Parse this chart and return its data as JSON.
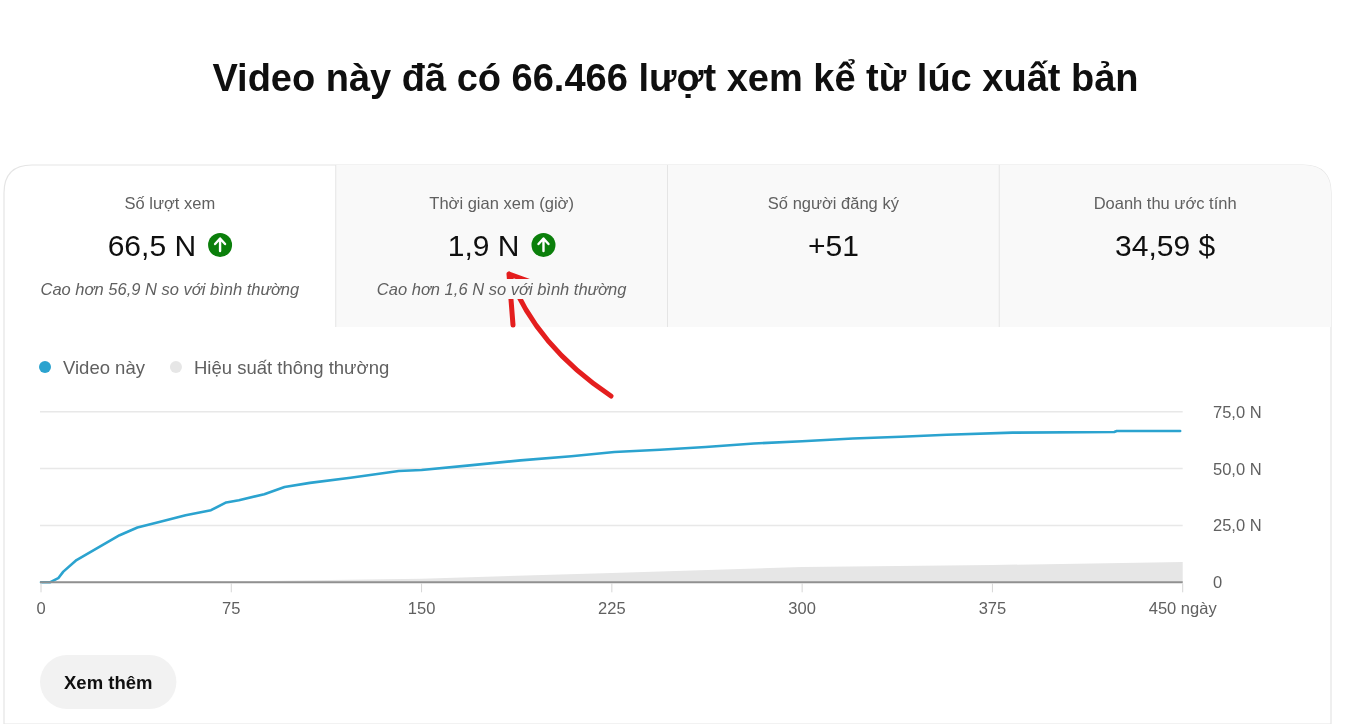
{
  "chart_data": [
    {
      "type": "other",
      "title": "Video này đã có 66.466 lượt xem kể từ lúc xuất bản",
      "categories": [
        "Số lượt xem",
        "Thời gian xem (giờ)",
        "Số người đăng ký",
        "Doanh thu ước tính"
      ],
      "value_labels": [
        "66,5 N",
        "1,9 N",
        "+51",
        "34,59 $"
      ],
      "annotations": [
        "Cao hơn 56,9 N so với bình thường",
        "Cao hơn 1,6 N so với bình thường"
      ]
    },
    {
      "type": "line",
      "legend": "top left",
      "grid": "y",
      "xlim": [
        0,
        450
      ],
      "xticks": [
        0,
        75,
        150,
        225,
        300,
        375,
        {
          "value": 450,
          "label": "450 ngày"
        }
      ],
      "ylim": [
        0,
        75
      ],
      "yticks": [
        0,
        {
          "value": 25,
          "label": "25,0 N"
        },
        {
          "value": 50,
          "label": "50,0 N"
        },
        {
          "value": 75,
          "label": "75,0 N"
        }
      ],
      "series": [
        {
          "name": "Video này",
          "color": "#2ba3cf",
          "x": [
            0,
            3.5,
            6.8,
            8.8,
            14,
            23,
            31,
            38,
            47,
            57,
            67,
            73,
            78,
            88,
            96,
            106,
            122,
            141,
            150,
            169,
            189,
            209,
            226,
            244,
            262,
            281,
            300,
            320,
            339,
            357,
            383,
            423,
            424,
            449
          ],
          "values": [
            0,
            0,
            1.8,
            4.7,
            9.8,
            15.6,
            20.7,
            24.1,
            26.6,
            29.5,
            31.7,
            35.1,
            36.1,
            38.7,
            41.9,
            43.7,
            46.0,
            48.9,
            49.4,
            51.4,
            53.6,
            55.4,
            57.3,
            58.3,
            59.5,
            61.0,
            62.0,
            63.2,
            64.0,
            64.9,
            65.8,
            66.1,
            66.5,
            66.5
          ]
        },
        {
          "name": "Hiệu suất thông thường",
          "type": "area",
          "color": "#e6e6e6",
          "x": [
            0,
            75,
            100,
            150,
            225,
            300,
            375,
            450
          ],
          "values": [
            0,
            0.3,
            0.8,
            1.6,
            4.1,
            6.7,
            7.6,
            8.9
          ]
        }
      ],
      "annotations": [
        "Xem thêm"
      ]
    }
  ]
}
